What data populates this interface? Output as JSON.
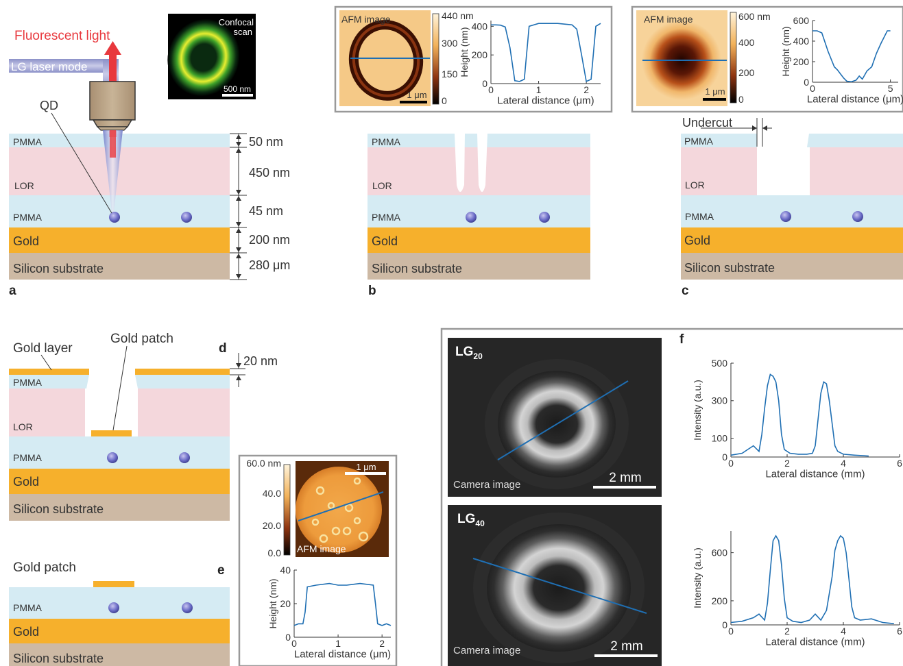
{
  "panel_letters": {
    "a": "a",
    "b": "b",
    "c": "c",
    "d": "d",
    "e": "e",
    "f": "f"
  },
  "layers": {
    "pmma": "PMMA",
    "lor": "LOR",
    "gold": "Gold",
    "silicon": "Silicon substrate"
  },
  "panel_a": {
    "fluorescent_light": "Fluorescent light",
    "laser_mode": "LG laser mode",
    "qd": "QD",
    "confocal_line1": "Confocal",
    "confocal_line2": "scan",
    "confocal_scale": "500 nm",
    "dims": [
      "50 nm",
      "450 nm",
      "45 nm",
      "200 nm",
      "280 μm"
    ]
  },
  "panel_c": {
    "undercut": "Undercut"
  },
  "panel_d": {
    "gold_layer": "Gold layer",
    "gold_patch": "Gold patch",
    "thickness": "20 nm"
  },
  "panel_e": {
    "gold_patch": "Gold patch"
  },
  "afm_b": {
    "label": "AFM image",
    "scale": "1 μm",
    "colorbar_ticks": [
      "440 nm",
      "300",
      "150",
      "0"
    ],
    "xlabel": "Lateral distance (μm)",
    "ylabel": "Height (nm)",
    "xticks": [
      "0",
      "1",
      "2"
    ],
    "yticks": [
      "400",
      "200",
      "0"
    ]
  },
  "afm_c": {
    "label": "AFM image",
    "scale": "1 μm",
    "colorbar_ticks": [
      "600 nm",
      "400",
      "200",
      "0"
    ],
    "xlabel": "Lateral distance (μm)",
    "ylabel": "Height (nm)",
    "xticks": [
      "0",
      "5"
    ],
    "yticks": [
      "600",
      "400",
      "200",
      "0"
    ]
  },
  "afm_e": {
    "label": "AFM image",
    "scale": "1 μm",
    "colorbar_ticks": [
      "60.0 nm",
      "40.0",
      "20.0",
      "0.0"
    ],
    "xlabel": "Lateral distance (μm)",
    "ylabel": "Height (nm)",
    "xticks": [
      "0",
      "1",
      "2"
    ],
    "yticks": [
      "40",
      "20",
      "0"
    ]
  },
  "camera": {
    "lg20_base": "LG",
    "lg20_sub": "20",
    "lg40_base": "LG",
    "lg40_sub": "40",
    "label": "Camera image",
    "scale": "2 mm"
  },
  "plot_f1": {
    "xlabel": "Lateral distance (mm)",
    "ylabel": "Intensity (a.u.)",
    "xticks": [
      "0",
      "2",
      "4",
      "6"
    ],
    "yticks": [
      "500",
      "300",
      "100",
      "0"
    ]
  },
  "plot_f2": {
    "xlabel": "Lateral distance (mm)",
    "ylabel": "Intensity (a.u.)",
    "xticks": [
      "0",
      "2",
      "4",
      "6"
    ],
    "yticks": [
      "600",
      "200",
      "0"
    ]
  },
  "colors": {
    "pmma": "#d5ebf3",
    "lor": "#f4d7dc",
    "gold": "#f6b02c",
    "silicon": "#cdb9a4",
    "plot_line": "#1f6fb3",
    "fluorescent": "#e8383d"
  },
  "chart_data": [
    {
      "type": "line",
      "ylim": [
        0,
        440
      ],
      "xlim": [
        0,
        2.3
      ],
      "x": [
        0,
        0.1,
        0.2,
        0.3,
        0.4,
        0.5,
        0.6,
        0.7,
        0.8,
        1.0,
        1.4,
        1.7,
        1.8,
        1.9,
        2.0,
        2.1,
        2.2,
        2.3
      ],
      "y": [
        410,
        410,
        408,
        395,
        250,
        20,
        15,
        30,
        400,
        420,
        420,
        410,
        380,
        200,
        15,
        30,
        400,
        420
      ]
    },
    {
      "type": "line",
      "ylim": [
        0,
        600
      ],
      "xlim": [
        0,
        5.5
      ],
      "x": [
        0,
        0.3,
        0.6,
        1.0,
        1.4,
        1.6,
        1.8,
        2.0,
        2.2,
        2.5,
        2.8,
        3.0,
        3.2,
        3.5,
        3.8,
        4.1,
        4.4,
        4.8,
        5.0
      ],
      "y": [
        500,
        500,
        480,
        300,
        150,
        120,
        80,
        40,
        10,
        5,
        20,
        60,
        30,
        110,
        150,
        280,
        380,
        500,
        500
      ]
    },
    {
      "type": "line",
      "ylim": [
        0,
        40
      ],
      "xlim": [
        0,
        2.2
      ],
      "x": [
        0,
        0.1,
        0.2,
        0.25,
        0.3,
        0.5,
        0.8,
        1.0,
        1.2,
        1.5,
        1.8,
        1.85,
        1.9,
        2.0,
        2.1,
        2.2
      ],
      "y": [
        7,
        8,
        8,
        15,
        30,
        31,
        32,
        31,
        31,
        32,
        31,
        20,
        8,
        7,
        8,
        7
      ]
    },
    {
      "type": "line",
      "ylim": [
        0,
        500
      ],
      "xlim": [
        0,
        6
      ],
      "x": [
        0,
        0.4,
        0.6,
        0.8,
        1.0,
        1.1,
        1.2,
        1.3,
        1.4,
        1.5,
        1.6,
        1.7,
        1.8,
        1.9,
        2.1,
        2.4,
        2.7,
        2.9,
        3.0,
        3.1,
        3.2,
        3.3,
        3.4,
        3.5,
        3.6,
        3.7,
        3.8,
        4.0,
        4.4,
        4.9
      ],
      "y": [
        10,
        20,
        40,
        60,
        30,
        120,
        260,
        380,
        440,
        430,
        400,
        300,
        120,
        40,
        20,
        15,
        15,
        20,
        60,
        200,
        340,
        400,
        390,
        300,
        180,
        60,
        30,
        15,
        10,
        5
      ]
    },
    {
      "type": "line",
      "ylim": [
        0,
        780
      ],
      "xlim": [
        0,
        6
      ],
      "x": [
        0,
        0.4,
        0.8,
        1.0,
        1.2,
        1.3,
        1.4,
        1.5,
        1.6,
        1.7,
        1.8,
        1.9,
        2.0,
        2.2,
        2.5,
        2.8,
        3.0,
        3.2,
        3.4,
        3.6,
        3.7,
        3.8,
        3.9,
        4.0,
        4.1,
        4.2,
        4.3,
        4.4,
        4.6,
        5.0,
        5.4,
        5.8
      ],
      "y": [
        20,
        30,
        60,
        90,
        40,
        180,
        450,
        700,
        740,
        700,
        500,
        220,
        60,
        30,
        20,
        40,
        90,
        40,
        120,
        400,
        620,
        700,
        740,
        720,
        600,
        380,
        150,
        60,
        40,
        50,
        20,
        10
      ]
    }
  ]
}
